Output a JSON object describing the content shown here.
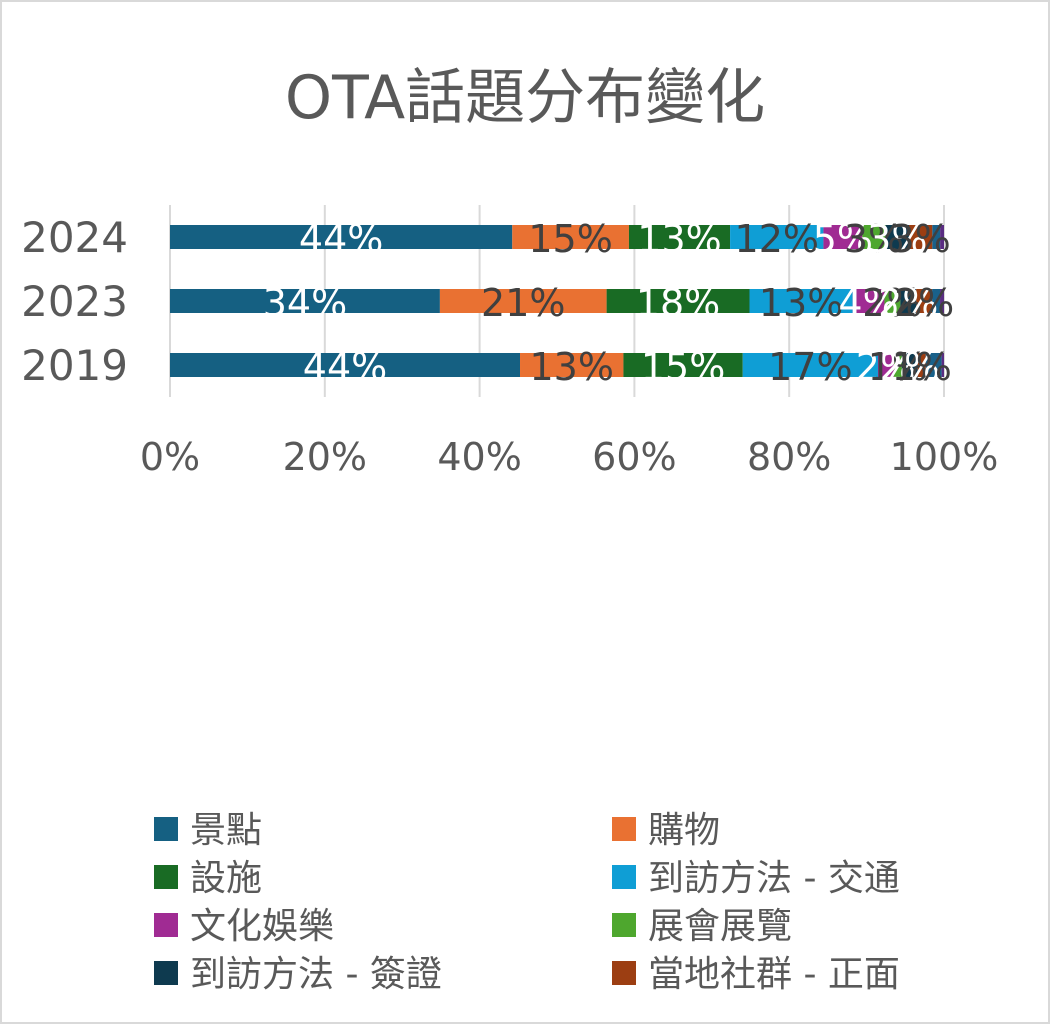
{
  "chart_data": {
    "type": "bar",
    "orientation": "horizontal",
    "stacked": "percent",
    "title": "OTA話題分布變化",
    "categories": [
      "2024",
      "2023",
      "2019"
    ],
    "series": [
      {
        "name": "景點",
        "color": "#156082",
        "values": [
          44,
          34,
          44
        ],
        "labels": [
          "44%",
          "34%",
          "44%"
        ],
        "label_color": "#ffffff"
      },
      {
        "name": "購物",
        "color": "#E97132",
        "values": [
          15,
          21,
          13
        ],
        "labels": [
          "15%",
          "21%",
          "13%"
        ],
        "label_color": "#404040"
      },
      {
        "name": "設施",
        "color": "#196B24",
        "values": [
          13,
          18,
          15
        ],
        "labels": [
          "13%",
          "18%",
          "15%"
        ],
        "label_color": "#ffffff"
      },
      {
        "name": "到訪方法 - 交通",
        "color": "#0F9ED5",
        "values": [
          12,
          13,
          17
        ],
        "labels": [
          "12%",
          "13%",
          "17%"
        ],
        "label_color": "#404040"
      },
      {
        "name": "文化娛樂",
        "color": "#A02B93",
        "values": [
          5,
          4,
          2
        ],
        "labels": [
          "5%",
          "4%",
          "2%"
        ],
        "label_color": "#ffffff"
      },
      {
        "name": "展會展覽",
        "color": "#4EA72E",
        "values": [
          3,
          2,
          1
        ],
        "labels": [
          "3%",
          "2%",
          "1%"
        ],
        "label_color": "#404040"
      },
      {
        "name": "到訪方法 - 簽證",
        "color": "#0E3A4F",
        "values": [
          3,
          2,
          2
        ],
        "labels": [
          "3%",
          "2%",
          "2%"
        ],
        "label_color": "#ffffff"
      },
      {
        "name": "當地社群 - 正面",
        "color": "#9C3E12",
        "values": [
          3,
          2,
          1
        ],
        "labels": [
          "3%",
          "2%",
          "1%"
        ],
        "label_color": "#404040"
      },
      {
        "name": "",
        "color": "#19618A",
        "values": [
          1,
          1,
          2
        ],
        "labels": [
          "",
          "",
          ""
        ],
        "label_color": "#ffffff"
      },
      {
        "name": "",
        "color": "#5A2D82",
        "values": [
          0.5,
          0.5,
          0.3
        ],
        "labels": [
          "",
          "",
          ""
        ],
        "label_color": "#ffffff"
      }
    ],
    "xlim": [
      0,
      100
    ],
    "x_ticks": [
      "0%",
      "20%",
      "40%",
      "60%",
      "80%",
      "100%"
    ],
    "gridlines": "vertical",
    "legend_position": "bottom",
    "legend_columns": 2
  }
}
